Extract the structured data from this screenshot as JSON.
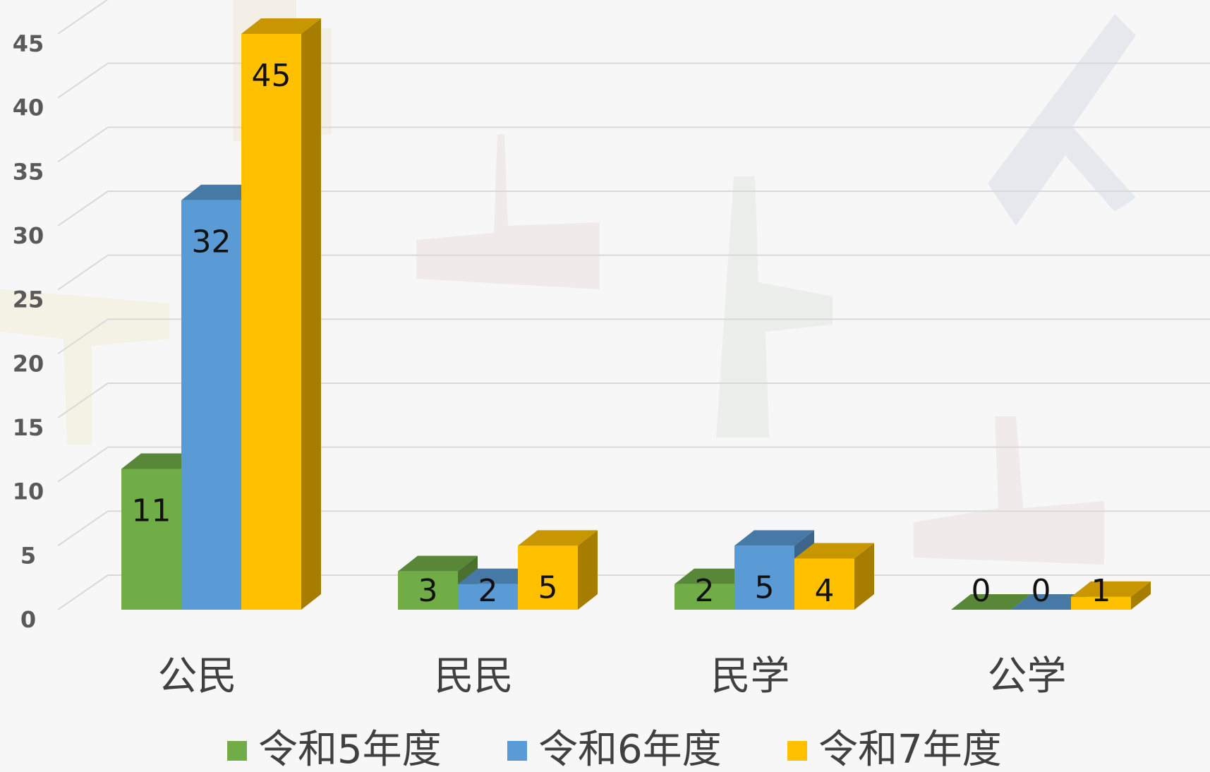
{
  "chart_data": {
    "type": "bar3d",
    "categories": [
      "公民",
      "民民",
      "民学",
      "公学"
    ],
    "series": [
      {
        "name": "令和5年度",
        "color": "#70ad47",
        "values": [
          11,
          3,
          2,
          0
        ]
      },
      {
        "name": "令和6年度",
        "color": "#5b9bd5",
        "values": [
          32,
          2,
          5,
          0
        ]
      },
      {
        "name": "令和7年度",
        "color": "#ffc000",
        "values": [
          45,
          5,
          4,
          1
        ]
      }
    ],
    "ylim": [
      0,
      45
    ],
    "yticks": [
      0,
      5,
      10,
      15,
      20,
      25,
      30,
      35,
      40,
      45
    ],
    "grid": true,
    "legend": "bottom"
  }
}
